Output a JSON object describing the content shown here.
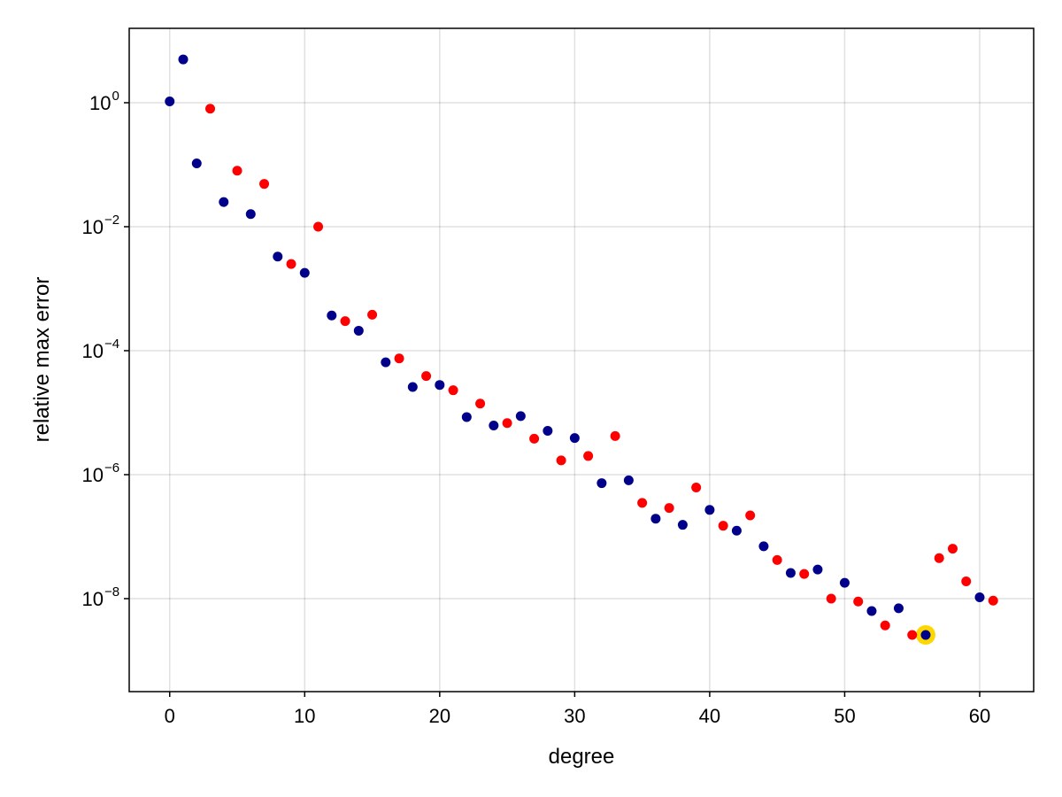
{
  "chart_data": {
    "type": "scatter",
    "title": "",
    "xlabel": "degree",
    "ylabel": "relative max error",
    "xlim": [
      -3,
      64
    ],
    "ylim_log10": [
      -9.5,
      1.2
    ],
    "yscale": "log",
    "grid": true,
    "x_ticks": [
      0,
      10,
      20,
      30,
      40,
      50,
      60
    ],
    "y_ticks_exponent": [
      0,
      -2,
      -4,
      -6,
      -8
    ],
    "y_tick_base": "10",
    "colors": {
      "odd": "#ff0000",
      "even": "#00008b",
      "highlight": "#ffd700"
    },
    "series": [
      {
        "color_key": "even",
        "x": [
          0,
          1,
          2,
          4,
          6,
          8,
          10,
          12,
          14,
          16,
          18,
          20,
          22,
          24,
          26,
          28,
          30,
          32,
          34,
          36,
          38,
          40,
          42,
          44,
          46,
          48,
          50,
          52,
          54,
          56,
          60
        ],
        "y": [
          1.05,
          5.0,
          0.105,
          0.025,
          0.016,
          0.0033,
          0.0018,
          0.00037,
          0.00021,
          6.5e-05,
          2.6e-05,
          2.8e-05,
          8.5e-06,
          6.2e-06,
          8.8e-06,
          5.1e-06,
          3.9e-06,
          7.3e-07,
          8.1e-07,
          1.95e-07,
          1.55e-07,
          2.7e-07,
          1.25e-07,
          7e-08,
          2.6e-08,
          2.95e-08,
          1.8e-08,
          6.3e-09,
          7e-09,
          2.6e-09,
          1.05e-08
        ]
      },
      {
        "color_key": "odd",
        "x": [
          3,
          5,
          7,
          9,
          11,
          13,
          15,
          17,
          19,
          21,
          23,
          25,
          27,
          29,
          31,
          33,
          35,
          37,
          39,
          41,
          43,
          45,
          47,
          49,
          51,
          53,
          55,
          57,
          58,
          59,
          61
        ],
        "y": [
          0.8,
          0.08,
          0.049,
          0.0025,
          0.01,
          0.0003,
          0.00038,
          7.5e-05,
          3.9e-05,
          2.3e-05,
          1.4e-05,
          6.8e-06,
          3.8e-06,
          1.7e-06,
          2e-06,
          4.2e-06,
          3.5e-07,
          2.9e-07,
          6.2e-07,
          1.5e-07,
          2.2e-07,
          4.2e-08,
          2.5e-08,
          1e-08,
          9e-09,
          3.7e-09,
          2.6e-09,
          4.5e-08,
          6.4e-08,
          1.9e-08,
          9.3e-09
        ]
      }
    ],
    "highlight": {
      "x": 56,
      "y": 2.6e-09
    }
  }
}
